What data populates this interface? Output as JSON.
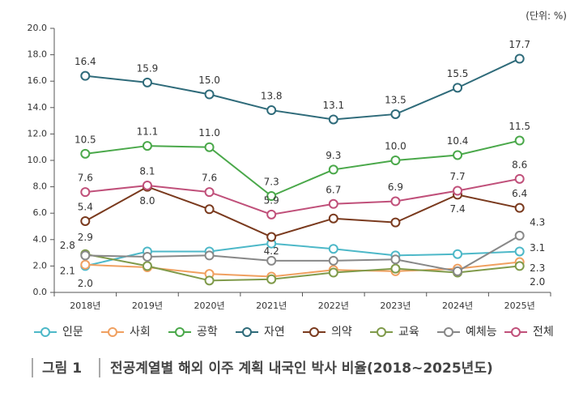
{
  "chart_data": {
    "type": "line",
    "unit": "(단위: %)",
    "figure_label": "그림 1",
    "title": "전공계열별 해외 이주 계획 내국인 박사 비율(2018~2025년도)",
    "categories": [
      "2018년",
      "2019년",
      "2020년",
      "2021년",
      "2022년",
      "2023년",
      "2024년",
      "2025년"
    ],
    "ylim": [
      0,
      20
    ],
    "yticks": [
      {
        "value": 0,
        "label": "0.0"
      },
      {
        "value": 2,
        "label": "2.0"
      },
      {
        "value": 4,
        "label": "4.0"
      },
      {
        "value": 6,
        "label": "6.0"
      },
      {
        "value": 8,
        "label": "8.0"
      },
      {
        "value": 10,
        "label": "10.0"
      },
      {
        "value": 12,
        "label": "12.0"
      },
      {
        "value": 14,
        "label": "14.0"
      },
      {
        "value": 16,
        "label": "16.0"
      },
      {
        "value": 18,
        "label": "18.0"
      },
      {
        "value": 20,
        "label": "20.0"
      }
    ],
    "series": [
      {
        "name": "인문",
        "color": "#4db8c8",
        "values": [
          2.0,
          3.1,
          3.1,
          3.7,
          3.3,
          2.8,
          2.9,
          3.1
        ],
        "value_labels": [
          "2.0",
          null,
          null,
          null,
          null,
          null,
          null,
          "3.1"
        ]
      },
      {
        "name": "사회",
        "color": "#f0a060",
        "values": [
          2.1,
          1.9,
          1.4,
          1.2,
          1.7,
          1.6,
          1.8,
          2.3
        ],
        "value_labels": [
          "2.1",
          null,
          null,
          null,
          null,
          null,
          null,
          "2.3"
        ]
      },
      {
        "name": "공학",
        "color": "#4aa84a",
        "values": [
          10.5,
          11.1,
          11.0,
          7.3,
          9.3,
          10.0,
          10.4,
          11.5
        ],
        "value_labels": [
          "10.5",
          "11.1",
          "11.0",
          "7.3",
          "9.3",
          "10.0",
          "10.4",
          "11.5"
        ]
      },
      {
        "name": "자연",
        "color": "#2f6b7a",
        "values": [
          16.4,
          15.9,
          15.0,
          13.8,
          13.1,
          13.5,
          15.5,
          17.7
        ],
        "value_labels": [
          "16.4",
          "15.9",
          "15.0",
          "13.8",
          "13.1",
          "13.5",
          "15.5",
          "17.7"
        ]
      },
      {
        "name": "의약",
        "color": "#7a3a1e",
        "values": [
          5.4,
          8.0,
          6.3,
          4.2,
          5.6,
          5.3,
          7.4,
          6.4
        ],
        "value_labels": [
          "5.4",
          "8.0",
          null,
          "4.2",
          null,
          null,
          "7.4",
          "6.4"
        ]
      },
      {
        "name": "교육",
        "color": "#7f9a4a",
        "values": [
          2.9,
          2.0,
          0.9,
          1.0,
          1.5,
          1.8,
          1.5,
          2.0
        ],
        "value_labels": [
          "2.9",
          null,
          null,
          null,
          null,
          null,
          null,
          "2.0"
        ]
      },
      {
        "name": "예체능",
        "color": "#888888",
        "values": [
          2.8,
          2.7,
          2.8,
          2.4,
          2.4,
          2.5,
          1.6,
          4.3
        ],
        "value_labels": [
          "2.8",
          null,
          null,
          null,
          null,
          null,
          null,
          "4.3"
        ]
      },
      {
        "name": "전체",
        "color": "#c0507a",
        "values": [
          7.6,
          8.1,
          7.6,
          5.9,
          6.7,
          6.9,
          7.7,
          8.6
        ],
        "value_labels": [
          "7.6",
          "8.1",
          "7.6",
          "5.9",
          "6.7",
          "6.9",
          "7.7",
          "8.6"
        ]
      }
    ]
  }
}
